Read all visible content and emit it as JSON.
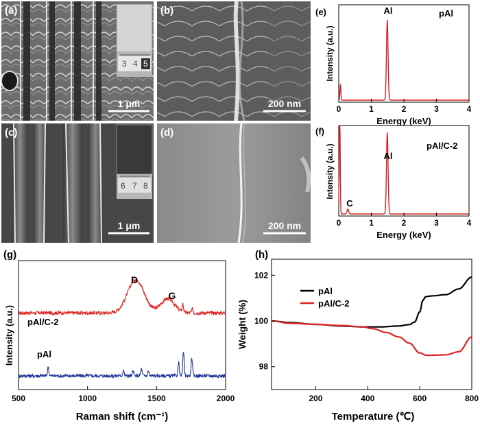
{
  "panels": {
    "a": {
      "label": "(a)",
      "scale_bar": "1 μm",
      "ruler_numbers": [
        "3",
        "4",
        "5"
      ]
    },
    "b": {
      "label": "(b)",
      "scale_bar": "200 nm"
    },
    "c": {
      "label": "(c)",
      "scale_bar": "1 μm",
      "ruler_numbers": [
        "6",
        "7",
        "8"
      ]
    },
    "d": {
      "label": "(d)",
      "scale_bar": "200 nm"
    },
    "e": {
      "label": "(e)",
      "tag": "pAl"
    },
    "f": {
      "label": "(f)",
      "tag": "pAl/C-2"
    },
    "g": {
      "label": "(g)"
    },
    "h": {
      "label": "(h)"
    }
  },
  "chart_data": [
    {
      "id": "e",
      "type": "line",
      "xlabel": "Energy (keV)",
      "ylabel": "Intensity (a.u.)",
      "xlim": [
        0,
        4
      ],
      "xticks": [
        "0",
        "1",
        "2",
        "3",
        "4"
      ],
      "annotations": [
        "Al"
      ],
      "series": [
        {
          "color": "#d62020",
          "peaks": [
            {
              "x": 0.05,
              "h": 0.2
            },
            {
              "x": 1.49,
              "h": 1.0
            }
          ]
        }
      ]
    },
    {
      "id": "f",
      "type": "line",
      "xlabel": "Energy (keV)",
      "ylabel": "Intensity (a.u.)",
      "xlim": [
        0,
        4
      ],
      "xticks": [
        "0",
        "1",
        "2",
        "3",
        "4"
      ],
      "annotations": [
        "Al",
        "C"
      ],
      "series": [
        {
          "color": "#d62020",
          "peaks": [
            {
              "x": 0.03,
              "h": 1.3
            },
            {
              "x": 0.28,
              "h": 0.06
            },
            {
              "x": 1.49,
              "h": 1.0
            }
          ]
        }
      ]
    },
    {
      "id": "g",
      "type": "line",
      "xlabel": "Raman shift (cm⁻¹)",
      "ylabel": "Intensity (a.u.)",
      "xlim": [
        500,
        2000
      ],
      "xticks": [
        "500",
        "1000",
        "1500",
        "2000"
      ],
      "annotations": [
        "D",
        "G"
      ],
      "series": [
        {
          "name": "pAl/C-2",
          "color": "#e02020",
          "baseline": 0.62,
          "bands": [
            {
              "x": 1350,
              "w": 85,
              "h": 0.33
            },
            {
              "x": 1580,
              "w": 70,
              "h": 0.14
            }
          ],
          "peaks": [
            {
              "x": 1690,
              "h": 0.08
            },
            {
              "x": 1760,
              "h": 0.04
            }
          ]
        },
        {
          "name": "pAl",
          "color": "#23399b",
          "baseline": 0.0,
          "bands": [],
          "peaks": [
            {
              "x": 715,
              "h": 0.09
            },
            {
              "x": 1260,
              "h": 0.06
            },
            {
              "x": 1330,
              "h": 0.05
            },
            {
              "x": 1390,
              "h": 0.07
            },
            {
              "x": 1440,
              "h": 0.05
            },
            {
              "x": 1660,
              "h": 0.13
            },
            {
              "x": 1695,
              "h": 0.24
            },
            {
              "x": 1755,
              "h": 0.18
            }
          ]
        }
      ]
    },
    {
      "id": "h",
      "type": "line",
      "xlabel": "Temperature (℃)",
      "ylabel": "Weight (%)",
      "xlim": [
        30,
        800
      ],
      "ylim": [
        97.0,
        102.7
      ],
      "xticks": [
        200,
        400,
        600,
        800
      ],
      "yticks": [
        98,
        100,
        102
      ],
      "legend_position": "top-left",
      "series": [
        {
          "name": "pAl",
          "color": "#000000",
          "x": [
            30,
            100,
            200,
            300,
            380,
            450,
            520,
            560,
            580,
            600,
            612,
            622,
            632,
            650,
            700,
            750,
            800
          ],
          "y": [
            100.0,
            99.93,
            99.85,
            99.78,
            99.74,
            99.74,
            99.78,
            99.84,
            99.95,
            100.4,
            100.9,
            101.05,
            101.08,
            101.1,
            101.15,
            101.4,
            101.92
          ]
        },
        {
          "name": "pAl/C-2",
          "color": "#e02020",
          "x": [
            30,
            100,
            200,
            300,
            380,
            420,
            470,
            520,
            560,
            600,
            625,
            650,
            700,
            750,
            800
          ],
          "y": [
            100.0,
            99.9,
            99.85,
            99.8,
            99.74,
            99.66,
            99.5,
            99.3,
            99.03,
            98.6,
            98.5,
            98.5,
            98.52,
            98.65,
            99.3
          ]
        }
      ]
    }
  ]
}
